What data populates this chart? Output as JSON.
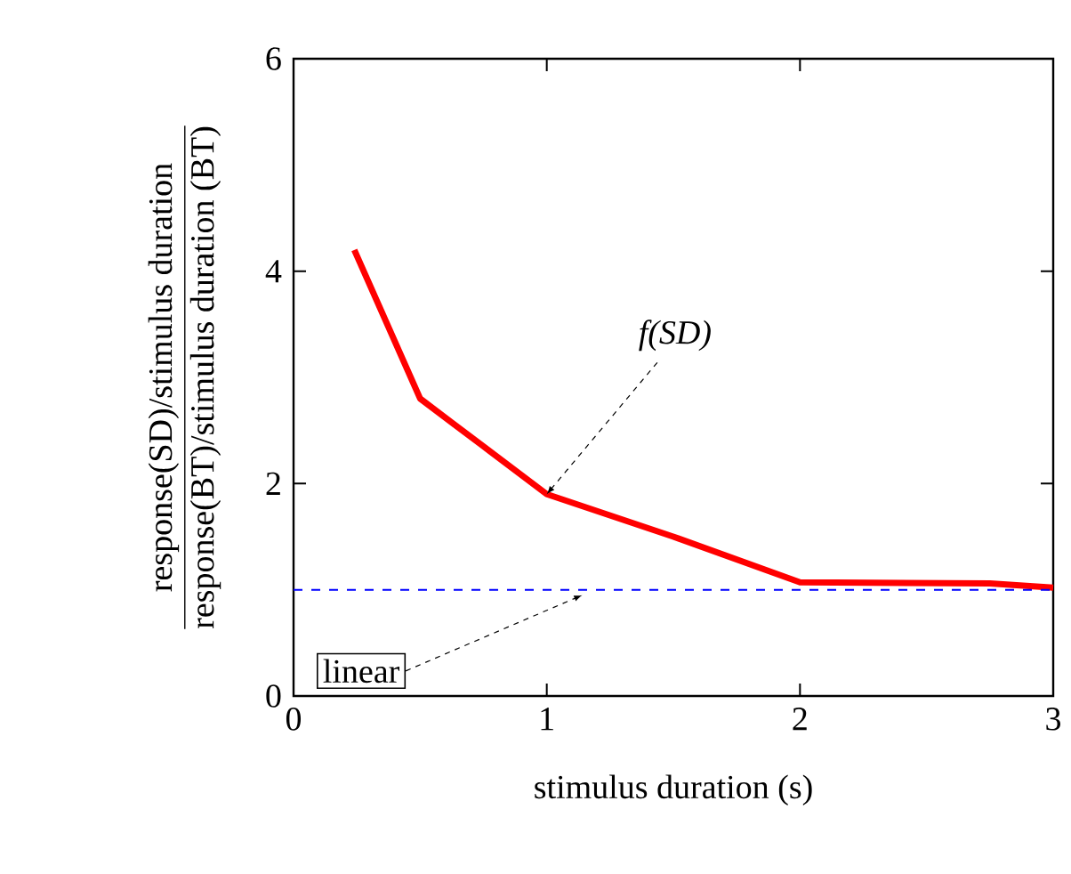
{
  "chart_data": {
    "type": "line",
    "xlabel": "stimulus duration (s)",
    "ylabel": "\\frac{\\text{response(SD)/stimulus duration}}{\\text{response(BT)/stimulus duration (BT)}}",
    "xlim": [
      0,
      3
    ],
    "ylim": [
      0,
      6
    ],
    "xticks": [
      0,
      1,
      2,
      3
    ],
    "yticks": [
      0,
      2,
      4,
      6
    ],
    "grid": false,
    "line_style": "solid",
    "series": [
      {
        "color": "#ff0000",
        "x": [
          0.24,
          0.5,
          0.75,
          1,
          1.5,
          2,
          2.75,
          3
        ],
        "values": [
          4.2,
          2.8,
          2.35,
          1.9,
          1.5,
          1.07,
          1.06,
          1.02
        ]
      }
    ],
    "ref_lines": [
      {
        "axis": "y",
        "value": 1,
        "label": "linear",
        "color": "#0000ff",
        "line_style": "dashed"
      }
    ],
    "annotations": [
      {
        "text": "f(SD)",
        "x": 1,
        "y": 1.9
      }
    ]
  }
}
